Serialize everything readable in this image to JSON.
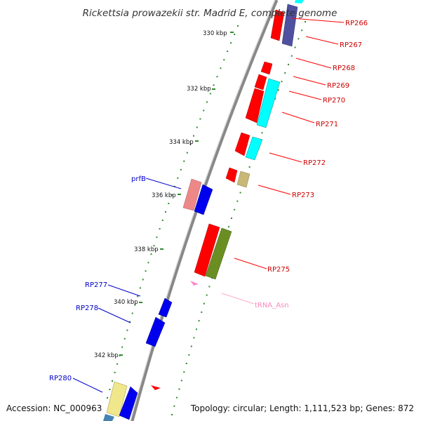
{
  "title": "Rickettsia prowazekii str. Madrid E, complete genome",
  "footer": {
    "accession": "Accession: NC_000963",
    "summary": "Topology: circular; Length: 1,111,523 bp; Genes: 872"
  },
  "ticks": [
    "330 kbp",
    "332 kbp",
    "334 kbp",
    "336 kbp",
    "338 kbp",
    "340 kbp",
    "342 kbp"
  ],
  "labels_forward": [
    "RP266",
    "RP267",
    "RP268",
    "RP269",
    "RP270",
    "RP271",
    "RP272",
    "RP273",
    "RP275",
    "tRNA_Asn"
  ],
  "labels_reverse": [
    "prfB",
    "RP277",
    "RP278",
    "RP280"
  ],
  "colors": {
    "forward_cds": "#ff0000",
    "reverse_cds": "#0000ee",
    "backbone": "#888888",
    "tick_mark": "#2e8b2e",
    "trna": "#ff88cc",
    "cog_cyan": "#00ffff",
    "cog_olive": "#6b8e23",
    "cog_khaki": "#c8b878",
    "cog_pink": "#ee8888",
    "cog_yellow": "#f0e68c",
    "cog_slate": "#5050a0"
  }
}
